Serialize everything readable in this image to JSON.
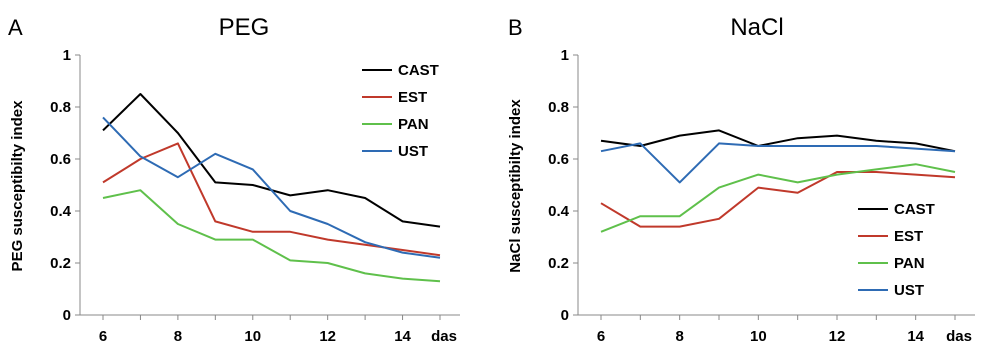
{
  "chart_data": [
    {
      "type": "line",
      "panel": "A",
      "title": "PEG",
      "xlabel": "das",
      "ylabel": "PEG susceptibilty index",
      "x": [
        6,
        7,
        8,
        9,
        10,
        11,
        12,
        13,
        14,
        15
      ],
      "xticks": [
        6,
        8,
        10,
        12,
        14
      ],
      "xlim": [
        6,
        15
      ],
      "ylim": [
        0,
        1
      ],
      "yticks": [
        0,
        0.2,
        0.4,
        0.6,
        0.8,
        1
      ],
      "ytick_labels": [
        "0",
        "0.2",
        "0.4",
        "0.6",
        "0.8",
        "1"
      ],
      "grid": false,
      "legend_position": "top-right",
      "series": [
        {
          "name": "CAST",
          "color": "#000000",
          "values": [
            0.71,
            0.85,
            0.7,
            0.51,
            0.5,
            0.46,
            0.48,
            0.45,
            0.36,
            0.34
          ]
        },
        {
          "name": "EST",
          "color": "#c0392b",
          "values": [
            0.51,
            0.6,
            0.66,
            0.36,
            0.32,
            0.32,
            0.29,
            0.27,
            0.25,
            0.23
          ]
        },
        {
          "name": "PAN",
          "color": "#5fc04b",
          "values": [
            0.45,
            0.48,
            0.35,
            0.29,
            0.29,
            0.21,
            0.2,
            0.16,
            0.14,
            0.13
          ]
        },
        {
          "name": "UST",
          "color": "#2e6bb4",
          "values": [
            0.76,
            0.61,
            0.53,
            0.62,
            0.56,
            0.4,
            0.35,
            0.28,
            0.24,
            0.22
          ]
        }
      ]
    },
    {
      "type": "line",
      "panel": "B",
      "title": "NaCl",
      "xlabel": "das",
      "ylabel": "NaCl susceptibilty index",
      "x": [
        6,
        7,
        8,
        9,
        10,
        11,
        12,
        13,
        14,
        15
      ],
      "xticks": [
        6,
        8,
        10,
        12,
        14
      ],
      "xlim": [
        6,
        15
      ],
      "ylim": [
        0,
        1
      ],
      "yticks": [
        0,
        0.2,
        0.4,
        0.6,
        0.8,
        1
      ],
      "ytick_labels": [
        "0",
        "0.2",
        "0.4",
        "0.6",
        "0.8",
        "1"
      ],
      "grid": false,
      "legend_position": "bottom-right",
      "series": [
        {
          "name": "CAST",
          "color": "#000000",
          "values": [
            0.67,
            0.65,
            0.69,
            0.71,
            0.65,
            0.68,
            0.69,
            0.67,
            0.66,
            0.63
          ]
        },
        {
          "name": "EST",
          "color": "#c0392b",
          "values": [
            0.43,
            0.34,
            0.34,
            0.37,
            0.49,
            0.47,
            0.55,
            0.55,
            0.54,
            0.53
          ]
        },
        {
          "name": "PAN",
          "color": "#5fc04b",
          "values": [
            0.32,
            0.38,
            0.38,
            0.49,
            0.54,
            0.51,
            0.54,
            0.56,
            0.58,
            0.55
          ]
        },
        {
          "name": "UST",
          "color": "#2e6bb4",
          "values": [
            0.63,
            0.66,
            0.51,
            0.66,
            0.65,
            0.65,
            0.65,
            0.65,
            0.64,
            0.63
          ]
        }
      ]
    }
  ]
}
